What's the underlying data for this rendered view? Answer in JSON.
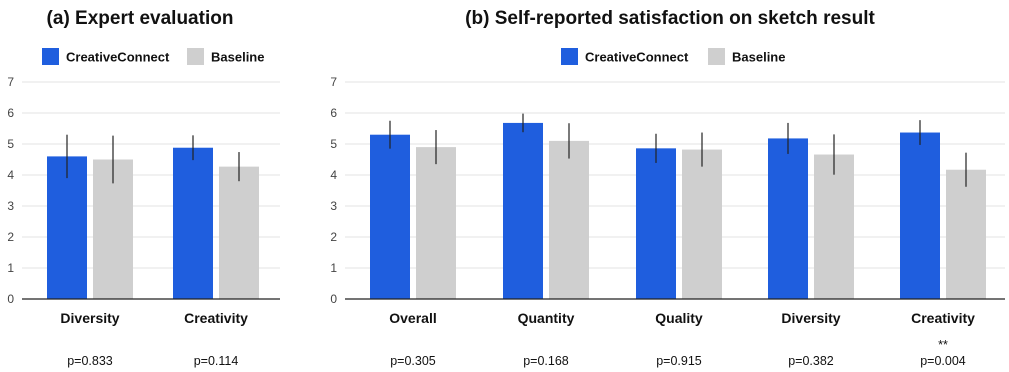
{
  "colors": {
    "CreativeConnect": "#1f5ede",
    "Baseline": "#cfcfcf"
  },
  "chart_data": [
    {
      "type": "bar",
      "title": "(a) Expert evaluation",
      "categories": [
        "Diversity",
        "Creativity"
      ],
      "ylim": [
        0,
        7
      ],
      "yticks": [
        "0",
        "1",
        "2",
        "3",
        "4",
        "5",
        "6",
        "7"
      ],
      "grid": true,
      "legend": "top-center",
      "series": [
        {
          "name": "CreativeConnect",
          "values": [
            4.6,
            4.88
          ],
          "error": [
            0.7,
            0.4
          ]
        },
        {
          "name": "Baseline",
          "values": [
            4.5,
            4.27
          ],
          "error": [
            0.77,
            0.47
          ]
        }
      ],
      "annotations": [
        "p=0.833",
        "p=0.114"
      ],
      "significance": [
        "",
        ""
      ]
    },
    {
      "type": "bar",
      "title": "(b) Self-reported satisfaction on sketch result",
      "categories": [
        "Overall",
        "Quantity",
        "Quality",
        "Diversity",
        "Creativity"
      ],
      "ylim": [
        0,
        7
      ],
      "yticks": [
        "0",
        "1",
        "2",
        "3",
        "4",
        "5",
        "6",
        "7"
      ],
      "grid": true,
      "legend": "top-center",
      "series": [
        {
          "name": "CreativeConnect",
          "values": [
            5.3,
            5.68,
            4.86,
            5.18,
            5.37
          ],
          "error": [
            0.45,
            0.3,
            0.47,
            0.5,
            0.4
          ]
        },
        {
          "name": "Baseline",
          "values": [
            4.9,
            5.1,
            4.82,
            4.66,
            4.17
          ],
          "error": [
            0.55,
            0.57,
            0.55,
            0.65,
            0.55
          ]
        }
      ],
      "annotations": [
        "p=0.305",
        "p=0.168",
        "p=0.915",
        "p=0.382",
        "p=0.004"
      ],
      "significance": [
        "",
        "",
        "",
        "",
        "**"
      ]
    }
  ]
}
